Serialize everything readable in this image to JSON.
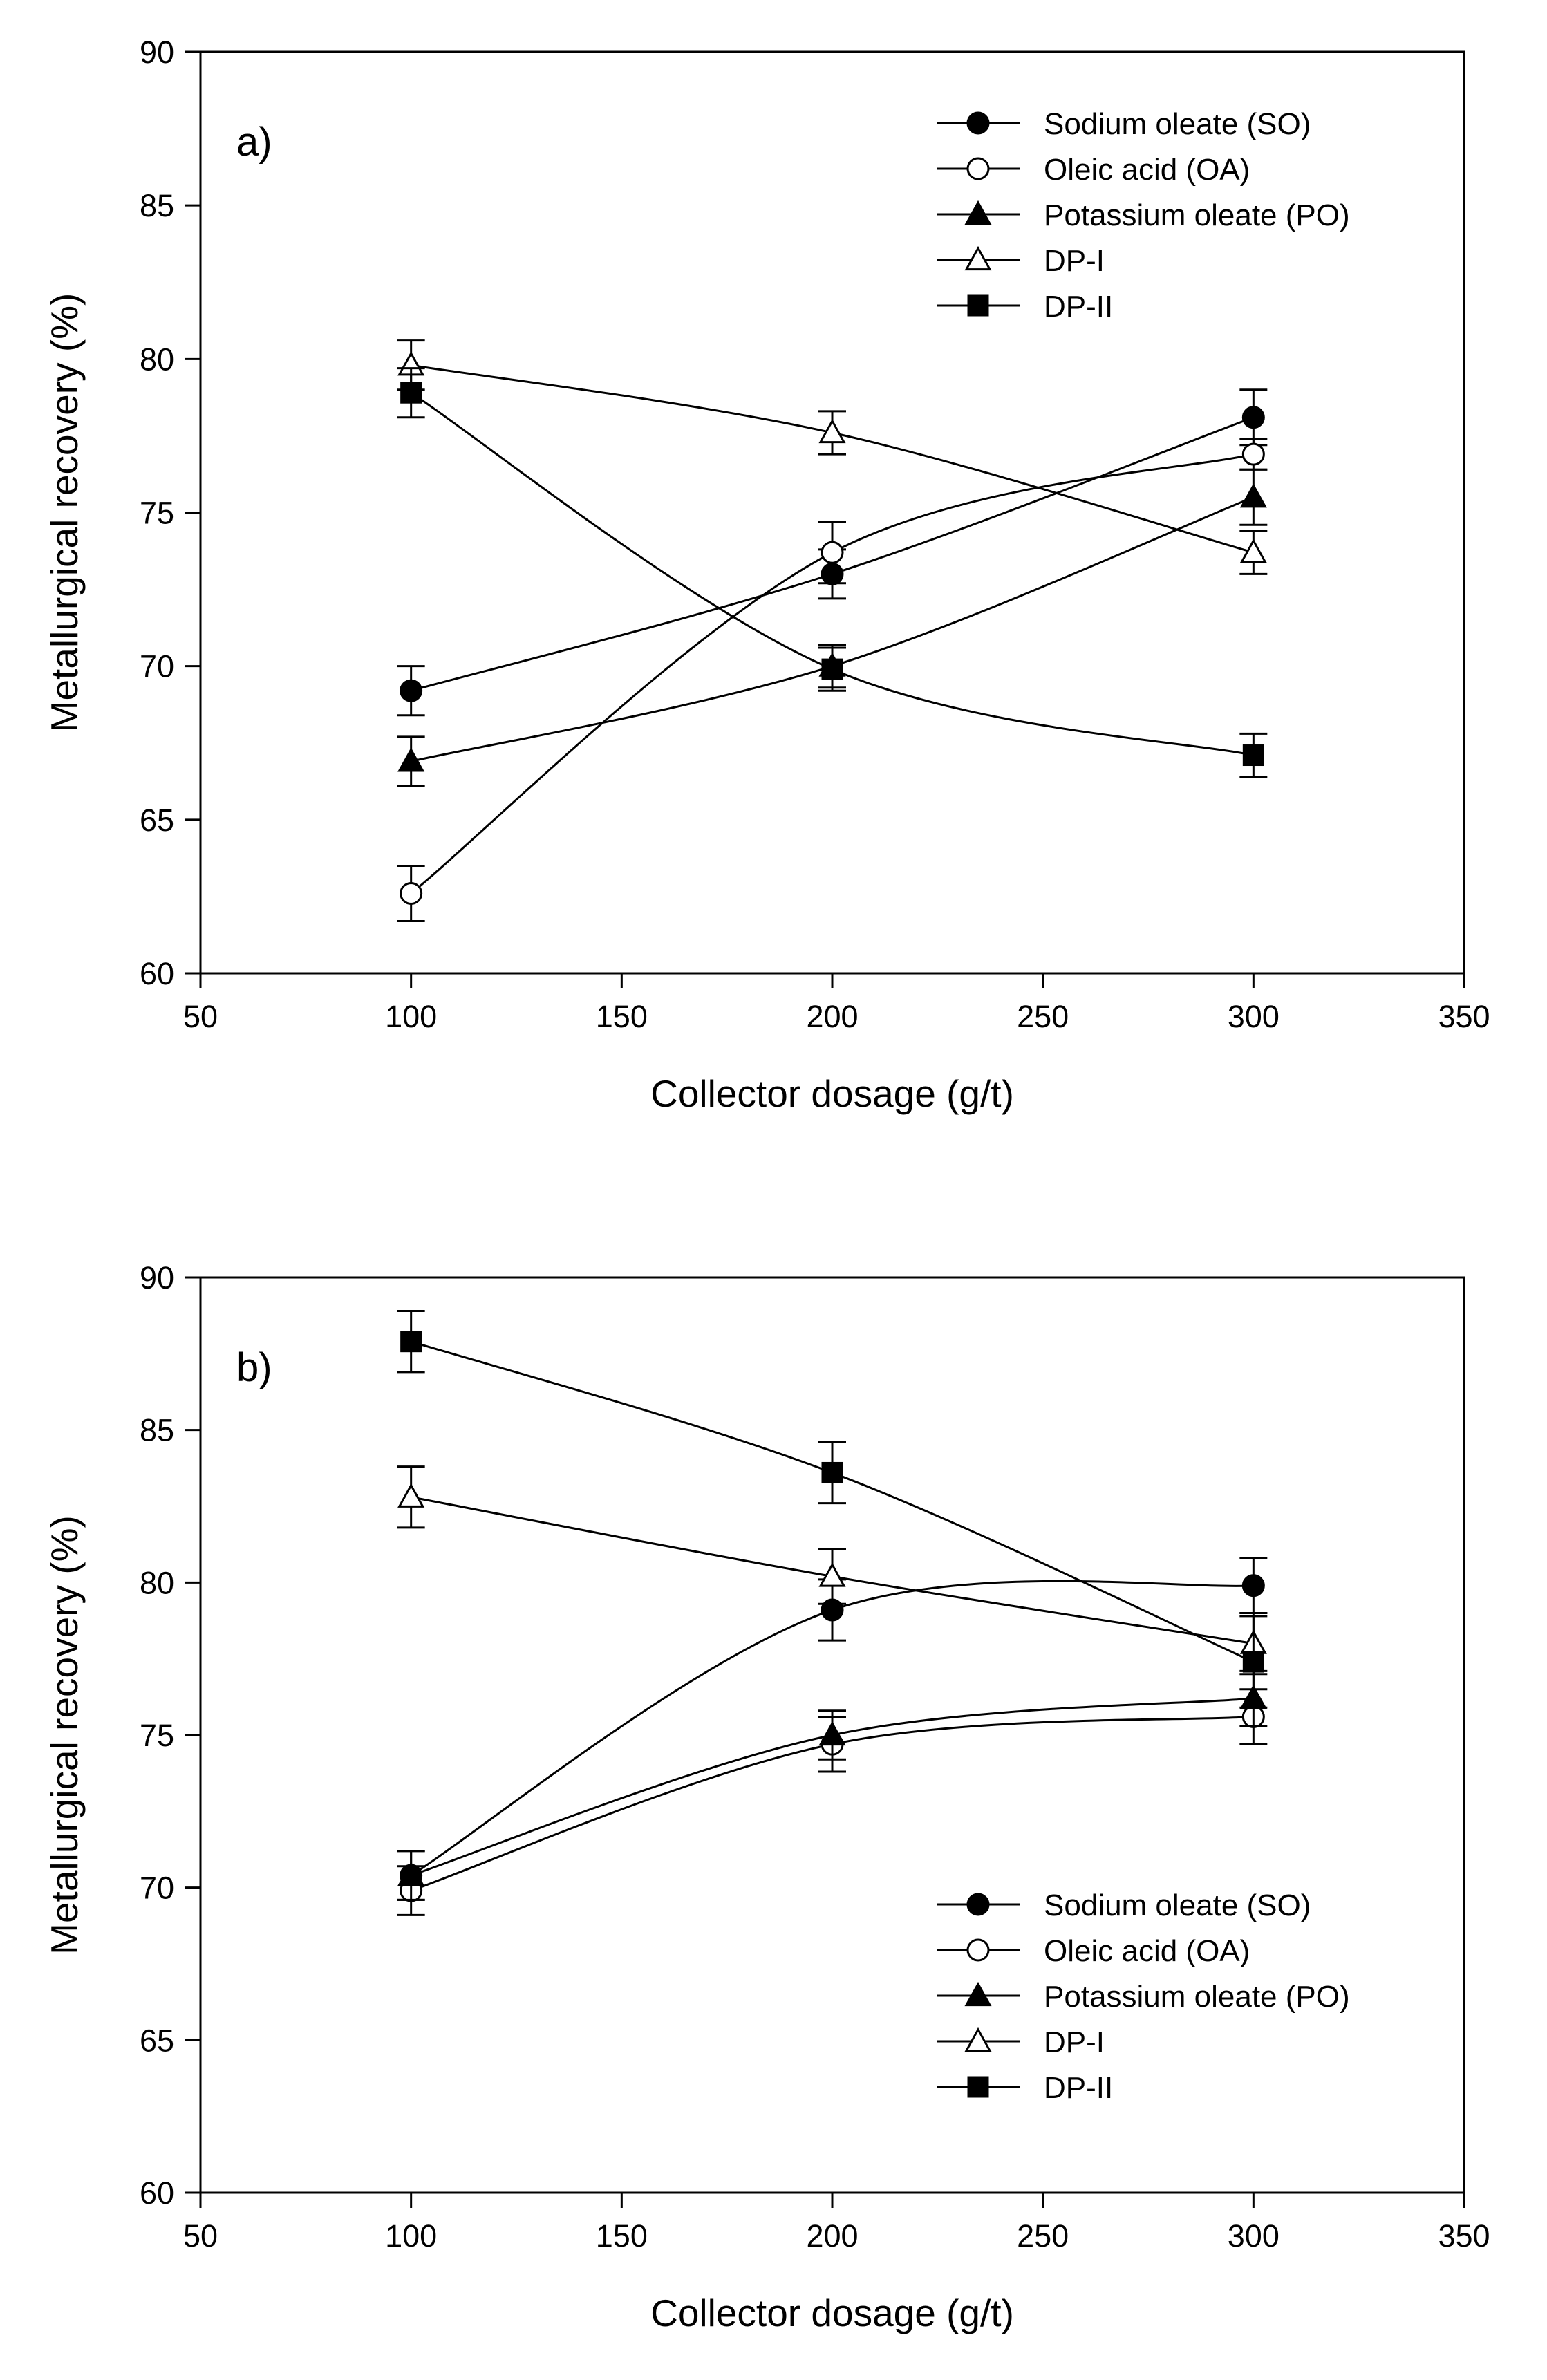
{
  "chart_data": [
    {
      "type": "line",
      "panel_label": "a)",
      "xlabel": "Collector dosage (g/t)",
      "ylabel": "Metallurgical recovery (%)",
      "xlim": [
        50,
        350
      ],
      "ylim": [
        60,
        90
      ],
      "xticks": [
        50,
        100,
        150,
        200,
        250,
        300,
        350
      ],
      "yticks": [
        60,
        65,
        70,
        75,
        80,
        85,
        90
      ],
      "legend_position": "top-right",
      "x": [
        100,
        200,
        300
      ],
      "series": [
        {
          "name": "Sodium oleate (SO)",
          "marker": "filled-circle",
          "values": [
            69.2,
            73.0,
            78.1
          ],
          "errors": [
            0.8,
            0.8,
            0.9
          ]
        },
        {
          "name": "Oleic acid (OA)",
          "marker": "open-circle",
          "values": [
            62.6,
            73.7,
            76.9
          ],
          "errors": [
            0.9,
            1.0,
            0.5
          ]
        },
        {
          "name": "Potassium oleate (PO)",
          "marker": "filled-triangle",
          "values": [
            66.9,
            70.0,
            75.5
          ],
          "errors": [
            0.8,
            0.7,
            0.9
          ]
        },
        {
          "name": "DP-I",
          "marker": "open-triangle",
          "values": [
            79.8,
            77.6,
            73.7
          ],
          "errors": [
            0.8,
            0.7,
            0.7
          ]
        },
        {
          "name": "DP-II",
          "marker": "filled-square",
          "values": [
            78.9,
            69.9,
            67.1
          ],
          "errors": [
            0.8,
            0.7,
            0.7
          ]
        }
      ]
    },
    {
      "type": "line",
      "panel_label": "b)",
      "xlabel": "Collector dosage (g/t)",
      "ylabel": "Metallurgical recovery (%)",
      "xlim": [
        50,
        350
      ],
      "ylim": [
        60,
        90
      ],
      "xticks": [
        50,
        100,
        150,
        200,
        250,
        300,
        350
      ],
      "yticks": [
        60,
        65,
        70,
        75,
        80,
        85,
        90
      ],
      "legend_position": "bottom-right",
      "x": [
        100,
        200,
        300
      ],
      "series": [
        {
          "name": "Sodium oleate (SO)",
          "marker": "filled-circle",
          "values": [
            70.4,
            79.1,
            79.9
          ],
          "errors": [
            0.8,
            1.0,
            0.9
          ]
        },
        {
          "name": "Oleic acid (OA)",
          "marker": "open-circle",
          "values": [
            69.9,
            74.7,
            75.6
          ],
          "errors": [
            0.8,
            0.9,
            0.9
          ]
        },
        {
          "name": "Potassium oleate (PO)",
          "marker": "filled-triangle",
          "values": [
            70.4,
            75.0,
            76.2
          ],
          "errors": [
            0.8,
            0.8,
            0.9
          ]
        },
        {
          "name": "DP-I",
          "marker": "open-triangle",
          "values": [
            82.8,
            80.2,
            78.0
          ],
          "errors": [
            1.0,
            0.9,
            1.0
          ]
        },
        {
          "name": "DP-II",
          "marker": "filled-square",
          "values": [
            87.9,
            83.6,
            77.4
          ],
          "errors": [
            1.0,
            1.0,
            1.5
          ]
        }
      ]
    }
  ]
}
